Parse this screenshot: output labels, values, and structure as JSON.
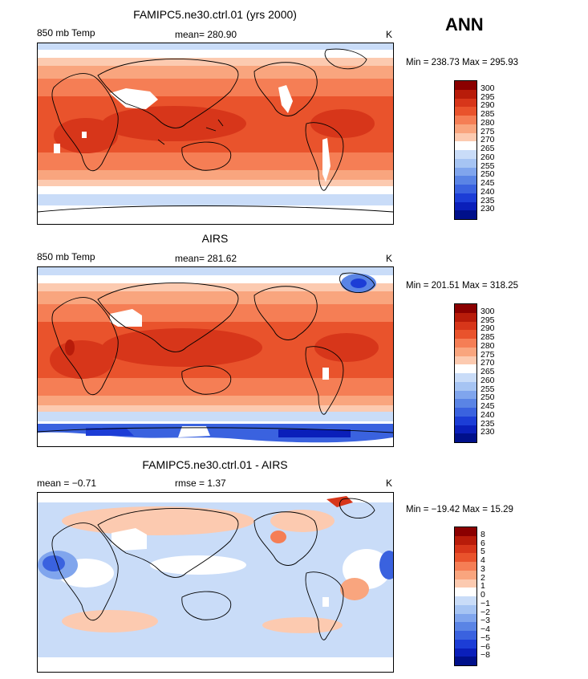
{
  "season": "ANN",
  "panels": [
    {
      "id": "model",
      "title": "FAMIPC5.ne30.ctrl.01 (yrs 2000)",
      "left_label": "850 mb Temp",
      "mid_label": "mean=  280.90",
      "units": "K",
      "minmax": "Min = 238.73 Max = 295.93",
      "mean_value": 280.9,
      "min_value": 238.73,
      "max_value": 295.93
    },
    {
      "id": "obs",
      "title": "AIRS",
      "left_label": "850 mb Temp",
      "mid_label": "mean=  281.62",
      "units": "K",
      "minmax": "Min = 201.51 Max = 318.25",
      "mean_value": 281.62,
      "min_value": 201.51,
      "max_value": 318.25
    },
    {
      "id": "diff",
      "title": "FAMIPC5.ne30.ctrl.01 - AIRS",
      "left_label": "mean =   −0.71",
      "mid_label": "rmse =    1.37",
      "units": "K",
      "minmax": "Min = −19.42 Max =  15.29",
      "mean_value": -0.71,
      "rmse_value": 1.37,
      "min_value": -19.42,
      "max_value": 15.29
    }
  ],
  "colorbar_temp": {
    "labels": [
      "300",
      "295",
      "290",
      "285",
      "280",
      "275",
      "270",
      "265",
      "260",
      "255",
      "250",
      "245",
      "240",
      "235",
      "230"
    ],
    "colors": [
      "#8b0000",
      "#b81c0a",
      "#d7361a",
      "#e9532c",
      "#f57e55",
      "#f9a57e",
      "#fccab0",
      "#ffffff",
      "#c9dcf8",
      "#a6c4f3",
      "#80a5ed",
      "#5a84e5",
      "#3a62df",
      "#1c3dd6",
      "#0a1fba",
      "#00108a"
    ]
  },
  "colorbar_diff": {
    "labels": [
      "8",
      "6",
      "5",
      "4",
      "3",
      "2",
      "1",
      "0",
      "−1",
      "−2",
      "−3",
      "−4",
      "−5",
      "−6",
      "−8"
    ],
    "colors": [
      "#8b0000",
      "#b81c0a",
      "#d7361a",
      "#e9532c",
      "#f57e55",
      "#f9a57e",
      "#fccab0",
      "#ffffff",
      "#c9dcf8",
      "#a6c4f3",
      "#80a5ed",
      "#5a84e5",
      "#3a62df",
      "#1c3dd6",
      "#0a1fba",
      "#00108a"
    ]
  }
}
